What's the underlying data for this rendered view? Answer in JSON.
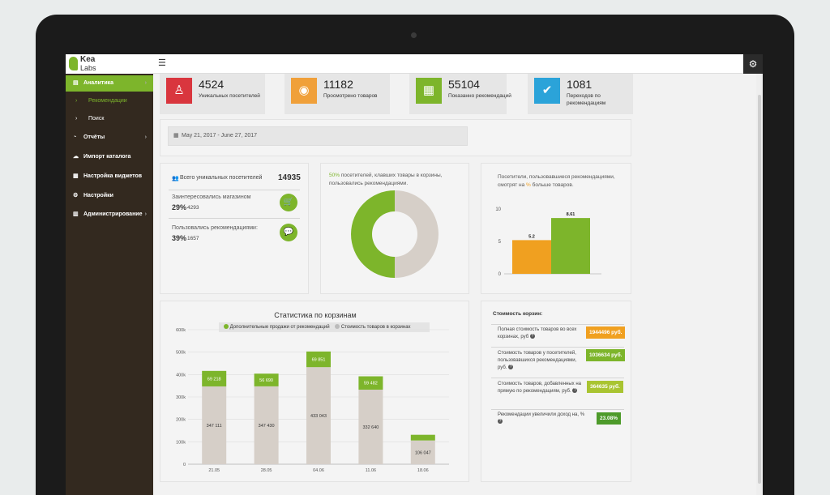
{
  "app": {
    "logo_line1": "Kea",
    "logo_line2": "Labs"
  },
  "sidebar": {
    "items": [
      {
        "label": "Аналитика",
        "icon": "chart-icon"
      },
      {
        "label": "Рекомендации",
        "icon": "bullet-icon"
      },
      {
        "label": "Поиск",
        "icon": "bullet-icon"
      },
      {
        "label": "Отчёты",
        "icon": "pie-icon"
      },
      {
        "label": "Импорт каталога",
        "icon": "cloud-icon"
      },
      {
        "label": "Настройка виджетов",
        "icon": "grid-icon"
      },
      {
        "label": "Настройки",
        "icon": "gear-icon"
      },
      {
        "label": "Администрирование",
        "icon": "bar-chart-icon"
      }
    ]
  },
  "stats": [
    {
      "value": "4524",
      "label": "Уникальных посетителей",
      "color": "#d9363e",
      "icon": "person-icon"
    },
    {
      "value": "11182",
      "label": "Просмотрено товаров",
      "color": "#f0a03a",
      "icon": "eye-icon"
    },
    {
      "value": "55104",
      "label": "Показанно рекомендаций",
      "color": "#7db52b",
      "icon": "grid-icon"
    },
    {
      "value": "1081",
      "label": "Переходов по рекомендациям",
      "color": "#2ba3d9",
      "icon": "check-icon"
    }
  ],
  "date_range": "May 21, 2017 - June 27, 2017",
  "visitors": {
    "total_label": "Всего уникальных посетителей",
    "total_value": "14935",
    "interested_label": "Заинтересовались магазином",
    "interested_pct": "29%",
    "interested_count": "4293",
    "used_label": "Пользовались рекомендациями:",
    "used_pct": "39%",
    "used_count": "1657"
  },
  "donut": {
    "pct": "50%",
    "text": "посетителей, клавших товары в корзины, пользовались рекомендациями.",
    "colors": {
      "primary": "#7db52b",
      "secondary": "#d6cfc8"
    }
  },
  "bars_small": {
    "title_prefix": "Посетители, пользовавшиеся рекомендациями, смотрят на",
    "pct_sign": "%",
    "title_suffix": "больше товаров."
  },
  "chart_data": [
    {
      "type": "pie",
      "categories": [
        "",
        ""
      ],
      "values": [
        50,
        50
      ]
    },
    {
      "type": "bar",
      "categories": [
        "",
        ""
      ],
      "values": [
        5.2,
        8.61
      ],
      "value_labels": [
        "5.2",
        "8.61"
      ],
      "ylim": [
        0,
        10
      ],
      "yticks": [
        "0",
        "5",
        "10"
      ],
      "colors": [
        "#f0a020",
        "#7db52b"
      ]
    },
    {
      "type": "bar",
      "title": "Статистика по корзинам",
      "categories": [
        "21.05",
        "28.05",
        "04.06",
        "11.06",
        "18.06"
      ],
      "series": [
        {
          "name": "Стоимость товаров в корзинах",
          "values": [
            347111,
            347430,
            433043,
            332640,
            106047
          ],
          "labels": [
            "347 111",
            "347 430",
            "433 043",
            "332 640",
            "106 047"
          ],
          "color": "#d6cfc8"
        },
        {
          "name": "Дополнительные продажи от рекомендаций",
          "values": [
            69218,
            56690,
            69851,
            59482,
            25200
          ],
          "labels": [
            "69 218",
            "56 690",
            "69 851",
            "59 482",
            ""
          ],
          "color": "#7db52b"
        }
      ],
      "ylim": [
        0,
        600000
      ],
      "yticks": [
        "0",
        "100k",
        "200k",
        "300k",
        "400k",
        "500k",
        "600k"
      ]
    }
  ],
  "baskets": {
    "title": "Стоимость корзин:",
    "rows": [
      {
        "label": "Полная стоимость товаров во всех корзинах, руб",
        "value": "1944496 руб.",
        "color": "#f0a020"
      },
      {
        "label": "Стоимость товаров у посетителей, пользовавшихся рекомендациями, руб.",
        "value": "1036634 руб.",
        "color": "#7db52b"
      },
      {
        "label": "Стоимость товаров, добавленных на прямую по рекомендациям, руб.",
        "value": "364635 руб.",
        "color": "#a9c431"
      },
      {
        "label": "Рекомендации увеличили доход на, %",
        "value": "23.08%",
        "color": "#4d9a2a"
      }
    ]
  }
}
